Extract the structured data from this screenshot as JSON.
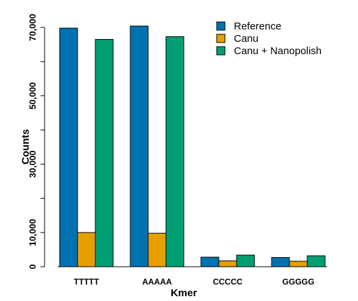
{
  "chart_data": {
    "type": "bar",
    "xlabel": "Kmer",
    "ylabel": "Counts",
    "categories": [
      "TTTTT",
      "AAAAA",
      "CCCCC",
      "GGGGG"
    ],
    "ylim": [
      0,
      70000
    ],
    "yticks": [
      0,
      10000,
      20000,
      30000,
      40000,
      50000,
      60000,
      70000
    ],
    "ytick_labels": [
      "0",
      "10,000",
      "",
      "30,000",
      "",
      "50,000",
      "",
      "70,000"
    ],
    "legend_position": "top-right",
    "series": [
      {
        "name": "Reference",
        "color": "#0072B2",
        "values": [
          69800,
          70400,
          2800,
          2700
        ]
      },
      {
        "name": "Canu",
        "color": "#E69F00",
        "values": [
          10000,
          9800,
          1700,
          1600
        ]
      },
      {
        "name": "Canu + Nanopolish",
        "color": "#009E73",
        "values": [
          66500,
          67300,
          3400,
          3200
        ]
      }
    ]
  }
}
